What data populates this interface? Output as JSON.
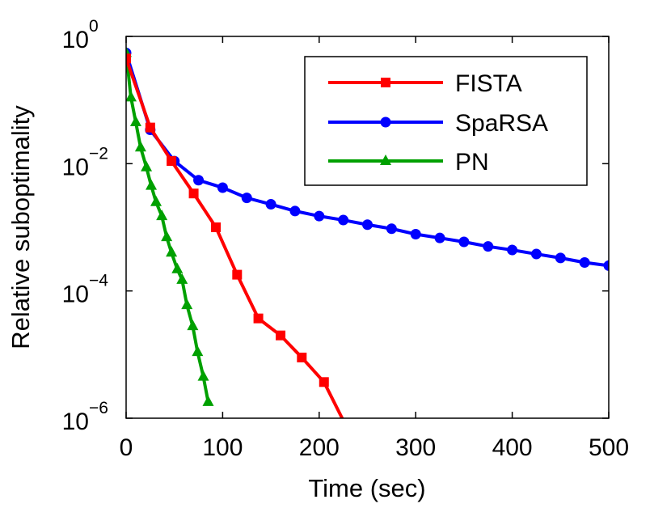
{
  "chart_data": {
    "type": "line",
    "title": "",
    "xlabel": "Time (sec)",
    "ylabel": "Relative suboptimality",
    "xlim": [
      0,
      500
    ],
    "ylim": [
      1e-06,
      1
    ],
    "yscale": "log",
    "grid": false,
    "legend_position": "top-right",
    "xticks": [
      {
        "value": 0,
        "label": "0"
      },
      {
        "value": 100,
        "label": "100"
      },
      {
        "value": 200,
        "label": "200"
      },
      {
        "value": 300,
        "label": "300"
      },
      {
        "value": 400,
        "label": "400"
      },
      {
        "value": 500,
        "label": "500"
      }
    ],
    "yticks": [
      {
        "value": 1,
        "base": "10",
        "exp": "0"
      },
      {
        "value": 0.01,
        "base": "10",
        "exp": "−2"
      },
      {
        "value": 0.0001,
        "base": "10",
        "exp": "−4"
      },
      {
        "value": 1e-06,
        "base": "10",
        "exp": "−6"
      }
    ],
    "series": [
      {
        "name": "FISTA",
        "color": "#ff0000",
        "marker": "square",
        "x": [
          0,
          25,
          47,
          70,
          93,
          115,
          137,
          160,
          182,
          205,
          227
        ],
        "y": [
          0.45,
          0.037,
          0.011,
          0.0034,
          0.001,
          0.00018,
          3.7e-05,
          2e-05,
          9e-06,
          3.7e-06,
          8e-07
        ]
      },
      {
        "name": "SpaRSA",
        "color": "#0000ff",
        "marker": "circle",
        "x": [
          0,
          25,
          50,
          75,
          100,
          125,
          150,
          175,
          200,
          225,
          250,
          275,
          300,
          325,
          350,
          375,
          400,
          425,
          450,
          475,
          500
        ],
        "y": [
          0.55,
          0.034,
          0.011,
          0.0055,
          0.0042,
          0.0029,
          0.0023,
          0.0018,
          0.0015,
          0.0013,
          0.0011,
          0.00095,
          0.00078,
          0.00068,
          0.00059,
          0.0005,
          0.00044,
          0.00038,
          0.00033,
          0.00028,
          0.00025
        ]
      },
      {
        "name": "PN",
        "color": "#00a000",
        "marker": "triangle",
        "x": [
          0,
          5,
          10,
          15,
          21,
          26,
          31,
          37,
          42,
          47,
          53,
          58,
          63,
          69,
          74,
          80,
          85
        ],
        "y": [
          0.55,
          0.11,
          0.045,
          0.018,
          0.0088,
          0.0045,
          0.0025,
          0.0015,
          0.0007,
          0.0004,
          0.00022,
          0.00015,
          6e-05,
          2.8e-05,
          1.1e-05,
          4.5e-06,
          1.8e-06
        ]
      }
    ]
  }
}
